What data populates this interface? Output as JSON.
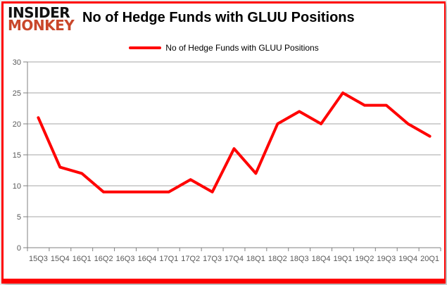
{
  "header": {
    "logo_line1": "INSIDER",
    "logo_line2": "MONKEY",
    "title": "No of Hedge Funds with GLUU Positions"
  },
  "legend": {
    "label": "No of Hedge Funds with GLUU Positions"
  },
  "chart_data": {
    "type": "line",
    "title": "No of Hedge Funds with GLUU Positions",
    "categories": [
      "15Q3",
      "15Q4",
      "16Q1",
      "16Q2",
      "16Q3",
      "16Q4",
      "17Q1",
      "17Q2",
      "17Q3",
      "17Q4",
      "18Q1",
      "18Q2",
      "18Q3",
      "18Q4",
      "19Q1",
      "19Q2",
      "19Q3",
      "19Q4",
      "20Q1"
    ],
    "series": [
      {
        "name": "No of Hedge Funds with GLUU Positions",
        "values": [
          21,
          13,
          12,
          9,
          9,
          9,
          9,
          11,
          9,
          16,
          12,
          20,
          22,
          20,
          25,
          23,
          23,
          20,
          18
        ],
        "color": "#ff0000"
      }
    ],
    "xlabel": "",
    "ylabel": "",
    "ylim": [
      0,
      30
    ],
    "y_ticks": [
      0,
      5,
      10,
      15,
      20,
      25,
      30
    ],
    "grid": true,
    "legend_position": "top-center"
  },
  "colors": {
    "line": "#ff0000",
    "frame": "#ff0000",
    "grid": "#a6a6a6",
    "axis": "#808080",
    "tick_label": "#595959",
    "title_text": "#000000",
    "logo_insider": "#111111",
    "logo_monkey": "#c9472b",
    "background": "#ffffff"
  }
}
